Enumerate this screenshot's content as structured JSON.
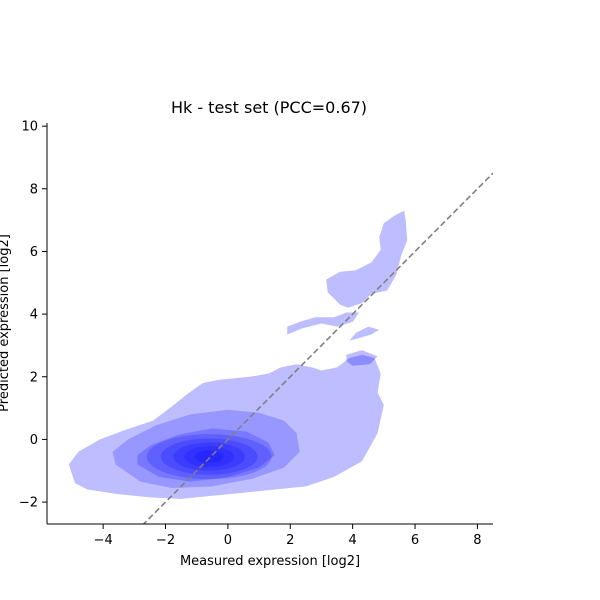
{
  "chart_data": {
    "type": "density",
    "title": "Hk - test set (PCC=0.67)",
    "xlabel": "Measured expression [log2]",
    "ylabel": "Predicted expression [log2]",
    "xlim": [
      -5.8,
      8.5
    ],
    "ylim": [
      -2.7,
      10.1
    ],
    "xticks": [
      -4,
      -2,
      0,
      2,
      4,
      6,
      8
    ],
    "yticks": [
      -2,
      0,
      2,
      4,
      6,
      8,
      10
    ],
    "grid": false,
    "legend": "none",
    "pcc": 0.67,
    "reference_line": {
      "style": "dashed",
      "color": "#808080",
      "slope": 1,
      "intercept": 0
    },
    "density_color": "#0000ff",
    "density_levels": [
      {
        "level": 1,
        "regions": [
          [
            [
              -4.9,
              -1.4
            ],
            [
              -4.5,
              -1.6
            ],
            [
              -3.5,
              -1.75
            ],
            [
              -2.5,
              -1.85
            ],
            [
              -1.5,
              -1.9
            ],
            [
              -0.5,
              -1.8
            ],
            [
              0.5,
              -1.7
            ],
            [
              1.5,
              -1.6
            ],
            [
              2.5,
              -1.5
            ],
            [
              3.4,
              -1.2
            ],
            [
              4.3,
              -0.7
            ],
            [
              4.8,
              0.2
            ],
            [
              5.0,
              1.1
            ],
            [
              4.8,
              1.5
            ],
            [
              4.9,
              2.1
            ],
            [
              4.7,
              2.6
            ],
            [
              4.3,
              2.7
            ],
            [
              3.9,
              2.6
            ],
            [
              3.5,
              2.3
            ],
            [
              3.0,
              2.2
            ],
            [
              2.7,
              2.3
            ],
            [
              2.2,
              2.4
            ],
            [
              1.7,
              2.3
            ],
            [
              1.3,
              2.1
            ],
            [
              0.7,
              2.0
            ],
            [
              -0.3,
              1.9
            ],
            [
              -0.8,
              1.8
            ],
            [
              -1.3,
              1.45
            ],
            [
              -1.8,
              1.05
            ],
            [
              -2.4,
              0.6
            ],
            [
              -3.3,
              0.3
            ],
            [
              -4.1,
              0.0
            ],
            [
              -4.8,
              -0.4
            ],
            [
              -5.1,
              -0.8
            ]
          ],
          [
            [
              1.9,
              3.35
            ],
            [
              2.4,
              3.55
            ],
            [
              3.0,
              3.7
            ],
            [
              3.5,
              3.6
            ],
            [
              4.0,
              3.75
            ],
            [
              4.2,
              4.05
            ],
            [
              3.8,
              4.05
            ],
            [
              3.4,
              3.9
            ],
            [
              2.8,
              3.9
            ],
            [
              2.3,
              3.75
            ],
            [
              1.9,
              3.6
            ]
          ],
          [
            [
              3.8,
              2.7
            ],
            [
              4.3,
              2.85
            ],
            [
              4.8,
              2.65
            ],
            [
              4.55,
              2.4
            ],
            [
              4.0,
              2.35
            ],
            [
              3.8,
              2.5
            ]
          ],
          [
            [
              3.9,
              3.15
            ],
            [
              4.6,
              3.35
            ],
            [
              4.85,
              3.5
            ],
            [
              4.5,
              3.6
            ],
            [
              4.1,
              3.4
            ]
          ],
          [
            [
              3.2,
              4.7
            ],
            [
              3.6,
              4.3
            ],
            [
              3.85,
              4.2
            ],
            [
              4.3,
              4.35
            ],
            [
              4.6,
              4.65
            ],
            [
              5.1,
              4.75
            ],
            [
              5.4,
              5.25
            ],
            [
              5.55,
              5.85
            ],
            [
              5.75,
              6.35
            ],
            [
              5.7,
              7.0
            ],
            [
              5.65,
              7.3
            ],
            [
              5.35,
              7.15
            ],
            [
              5.0,
              6.9
            ],
            [
              4.85,
              6.45
            ],
            [
              4.9,
              6.05
            ],
            [
              4.6,
              5.65
            ],
            [
              4.1,
              5.4
            ],
            [
              3.6,
              5.35
            ],
            [
              3.15,
              5.1
            ]
          ]
        ]
      },
      {
        "level": 2,
        "regions": [
          [
            [
              -3.6,
              -0.8
            ],
            [
              -2.8,
              -1.35
            ],
            [
              -1.8,
              -1.55
            ],
            [
              -0.5,
              -1.5
            ],
            [
              0.8,
              -1.25
            ],
            [
              1.8,
              -0.9
            ],
            [
              2.3,
              -0.4
            ],
            [
              2.2,
              0.2
            ],
            [
              1.8,
              0.6
            ],
            [
              1.0,
              0.85
            ],
            [
              0.0,
              0.95
            ],
            [
              -1.2,
              0.8
            ],
            [
              -2.3,
              0.45
            ],
            [
              -3.2,
              0.0
            ],
            [
              -3.7,
              -0.4
            ]
          ]
        ]
      },
      {
        "level": 3,
        "regions": [
          [
            [
              -2.9,
              -0.8
            ],
            [
              -2.2,
              -1.2
            ],
            [
              -1.2,
              -1.35
            ],
            [
              0.0,
              -1.2
            ],
            [
              1.0,
              -0.9
            ],
            [
              1.5,
              -0.5
            ],
            [
              1.3,
              -0.1
            ],
            [
              0.6,
              0.25
            ],
            [
              -0.5,
              0.35
            ],
            [
              -1.6,
              0.15
            ],
            [
              -2.5,
              -0.2
            ],
            [
              -2.9,
              -0.5
            ]
          ]
        ]
      },
      {
        "level": 4,
        "ellipse": {
          "cx": -0.6,
          "cy": -0.55,
          "rx": 2.0,
          "ry": 0.72
        }
      },
      {
        "level": 5,
        "ellipse": {
          "cx": -0.6,
          "cy": -0.55,
          "rx": 1.55,
          "ry": 0.58
        }
      },
      {
        "level": 6,
        "ellipse": {
          "cx": -0.6,
          "cy": -0.55,
          "rx": 1.15,
          "ry": 0.45
        }
      },
      {
        "level": 7,
        "ellipse": {
          "cx": -0.6,
          "cy": -0.55,
          "rx": 0.8,
          "ry": 0.33
        }
      },
      {
        "level": 8,
        "ellipse": {
          "cx": -0.6,
          "cy": -0.55,
          "rx": 0.45,
          "ry": 0.2
        }
      }
    ]
  }
}
